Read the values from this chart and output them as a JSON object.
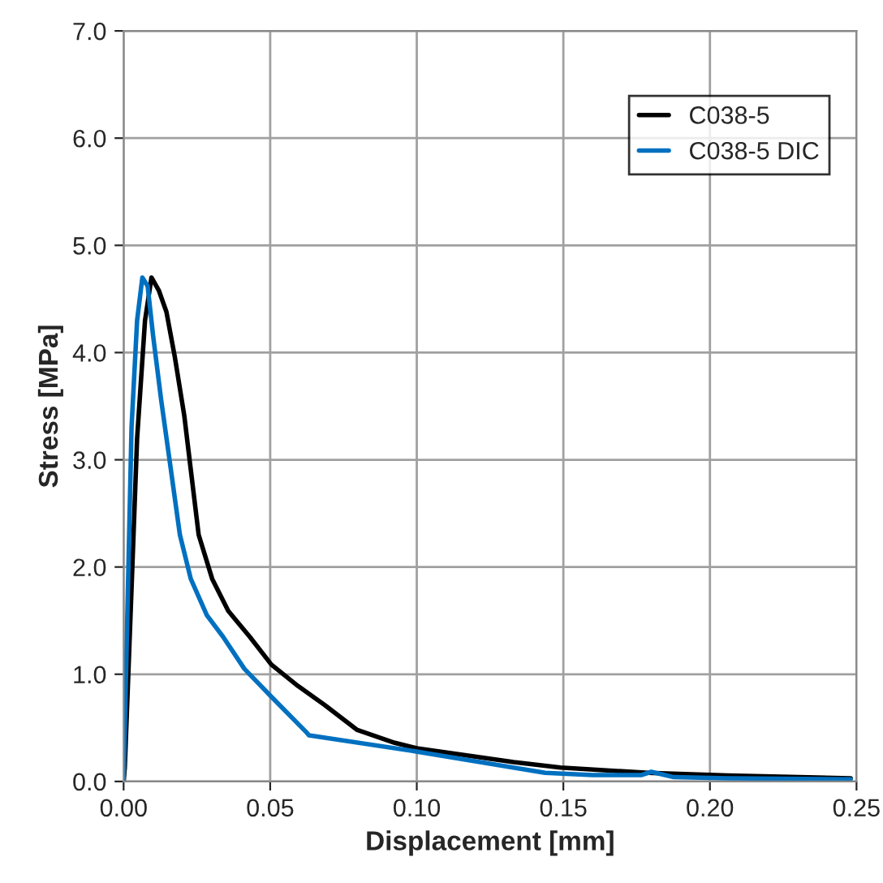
{
  "chart_data": {
    "type": "line",
    "xlabel": "Displacement [mm]",
    "ylabel": "Stress [MPa]",
    "xlim": [
      0,
      0.25
    ],
    "xticks": [
      {
        "value": 0,
        "label": "0.00"
      },
      {
        "value": 0.05,
        "label": "0.05"
      },
      {
        "value": 0.1,
        "label": "0.10"
      },
      {
        "value": 0.15,
        "label": "0.15"
      },
      {
        "value": 0.2,
        "label": "0.20"
      },
      {
        "value": 0.25,
        "label": "0.25"
      }
    ],
    "ylim": [
      0,
      7
    ],
    "yticks": [
      {
        "value": 0,
        "label": "0.0"
      },
      {
        "value": 1,
        "label": "1.0"
      },
      {
        "value": 2,
        "label": "2.0"
      },
      {
        "value": 3,
        "label": "3.0"
      },
      {
        "value": 4,
        "label": "4.0"
      },
      {
        "value": 5,
        "label": "5.0"
      },
      {
        "value": 6,
        "label": "6.0"
      },
      {
        "value": 7,
        "label": "7.0"
      }
    ],
    "grid": true,
    "legend": "top right",
    "marker": "none",
    "line_style": "solid",
    "series": [
      {
        "name": "C038-5",
        "color": "#000000",
        "x": [
          0,
          0.0004,
          0.0027,
          0.0046,
          0.0073,
          0.0095,
          0.012,
          0.0146,
          0.0174,
          0.0207,
          0.0229,
          0.0256,
          0.0302,
          0.0357,
          0.043,
          0.0504,
          0.0595,
          0.0687,
          0.0797,
          0.0925,
          0.1,
          0.133,
          0.149,
          0.179,
          0.206,
          0.248
        ],
        "values": [
          0,
          0.13,
          1.8,
          3.2,
          4.3,
          4.7,
          4.58,
          4.38,
          3.97,
          3.41,
          2.91,
          2.3,
          1.89,
          1.59,
          1.35,
          1.09,
          0.89,
          0.71,
          0.48,
          0.36,
          0.31,
          0.18,
          0.13,
          0.08,
          0.055,
          0.03
        ]
      },
      {
        "name": "C038-5 DIC",
        "color": "#0070c0",
        "x": [
          0,
          0.0027,
          0.0046,
          0.0064,
          0.0082,
          0.01,
          0.0128,
          0.0156,
          0.0192,
          0.0229,
          0.0284,
          0.0339,
          0.0412,
          0.0504,
          0.0623,
          0.0632,
          0.0998,
          0.1438,
          0.16,
          0.1767,
          0.18,
          0.1877,
          0.206,
          0.248
        ],
        "values": [
          0,
          3.3,
          4.3,
          4.7,
          4.62,
          4.17,
          3.56,
          3.01,
          2.3,
          1.89,
          1.55,
          1.35,
          1.05,
          0.79,
          0.46,
          0.43,
          0.28,
          0.08,
          0.06,
          0.06,
          0.09,
          0.04,
          0.03,
          0.02
        ]
      }
    ]
  }
}
